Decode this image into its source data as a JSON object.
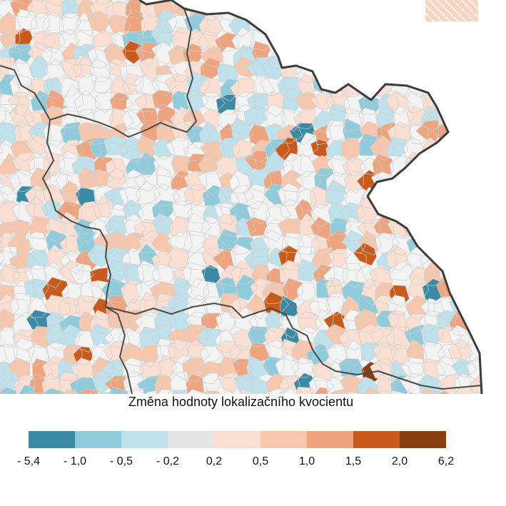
{
  "legend": {
    "title": "Změna hodnoty lokalizačního kvocientu",
    "classes": [
      {
        "from": "- 5,4",
        "to": "- 1,0",
        "color": "#3a8aa3"
      },
      {
        "from": "- 1,0",
        "to": "- 0,5",
        "color": "#8fcbdb"
      },
      {
        "from": "- 0,5",
        "to": "- 0,2",
        "color": "#bfe1ec"
      },
      {
        "from": "- 0,2",
        "to": "0,2",
        "color": "#e4e4e4"
      },
      {
        "from": "0,2",
        "to": "0,5",
        "color": "#fbdfd2"
      },
      {
        "from": "0,5",
        "to": "1,0",
        "color": "#f6c6ad"
      },
      {
        "from": "1,0",
        "to": "1,5",
        "color": "#eea47e"
      },
      {
        "from": "1,5",
        "to": "2,0",
        "color": "#c85b1b"
      },
      {
        "from": "2,0",
        "to": "6,2",
        "color": "#8a3f11"
      }
    ],
    "ticks": [
      "- 5,4",
      "- 1,0",
      "- 0,5",
      "- 0,2",
      "0,2",
      "0,5",
      "1,0",
      "1,5",
      "2,0",
      "6,2"
    ]
  },
  "map": {
    "background_color": "#f3f3f3",
    "municipal_border_color": "#c8c8c8",
    "region_border_color": "#444444",
    "state_border_color": "#3c3c3c",
    "hatch_color": "#f2c4a8"
  }
}
